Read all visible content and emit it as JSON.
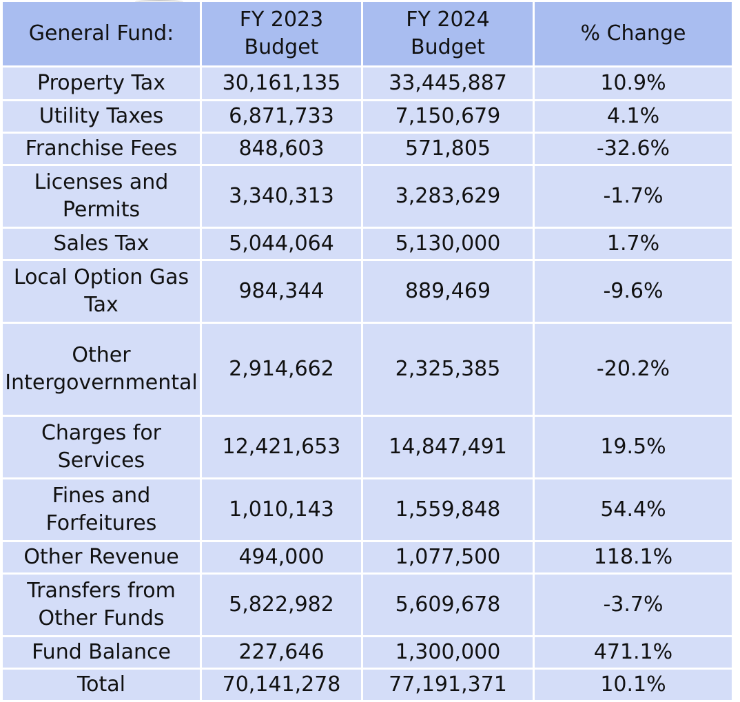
{
  "table": {
    "headers": [
      "General Fund:",
      "FY 2023\nBudget",
      "FY 2024\nBudget",
      "% Change"
    ],
    "header_lines": [
      [
        "General Fund:"
      ],
      [
        "FY 2023",
        "Budget"
      ],
      [
        "FY 2024",
        "Budget"
      ],
      [
        "% Change"
      ]
    ],
    "rows": [
      {
        "label": [
          "Property Tax"
        ],
        "fy2023": "30,161,135",
        "fy2024": "33,445,887",
        "change": "10.9%",
        "h": 46
      },
      {
        "label": [
          "Utility Taxes"
        ],
        "fy2023": "6,871,733",
        "fy2024": "7,150,679",
        "change": "4.1%",
        "h": 44
      },
      {
        "label": [
          "Franchise Fees"
        ],
        "fy2023": "848,603",
        "fy2024": "571,805",
        "change": "-32.6%",
        "h": 44
      },
      {
        "label": [
          "Licenses and",
          "Permits"
        ],
        "fy2023": "3,340,313",
        "fy2024": "3,283,629",
        "change": "-1.7%",
        "h": 88
      },
      {
        "label": [
          "Sales Tax"
        ],
        "fy2023": "5,044,064",
        "fy2024": "5,130,000",
        "change": "1.7%",
        "h": 44
      },
      {
        "label": [
          "Local Option Gas",
          "Tax"
        ],
        "fy2023": "984,344",
        "fy2024": "889,469",
        "change": "-9.6%",
        "h": 88
      },
      {
        "label": [
          "Other",
          "Intergovernmental"
        ],
        "fy2023": "2,914,662",
        "fy2024": "2,325,385",
        "change": "-20.2%",
        "h": 132
      },
      {
        "label": [
          "Charges for",
          "Services"
        ],
        "fy2023": "12,421,653",
        "fy2024": "14,847,491",
        "change": "19.5%",
        "h": 88
      },
      {
        "label": [
          "Fines and",
          "Forfeitures"
        ],
        "fy2023": "1,010,143",
        "fy2024": "1,559,848",
        "change": "54.4%",
        "h": 88
      },
      {
        "label": [
          "Other Revenue"
        ],
        "fy2023": "494,000",
        "fy2024": "1,077,500",
        "change": "118.1%",
        "h": 44
      },
      {
        "label": [
          "Transfers from",
          "Other Funds"
        ],
        "fy2023": "5,822,982",
        "fy2024": "5,609,678",
        "change": "-3.7%",
        "h": 88
      },
      {
        "label": [
          "Fund Balance"
        ],
        "fy2023": "227,646",
        "fy2024": "1,300,000",
        "change": "471.1%",
        "h": 44
      },
      {
        "label": [
          "Total"
        ],
        "fy2023": "70,141,278",
        "fy2024": "77,191,371",
        "change": "10.1%",
        "h": 44
      }
    ]
  },
  "colors": {
    "header_bg": "#a9bdf0",
    "cell_bg": "#d4ddf8",
    "grid": "#ffffff",
    "text": "#111111"
  }
}
